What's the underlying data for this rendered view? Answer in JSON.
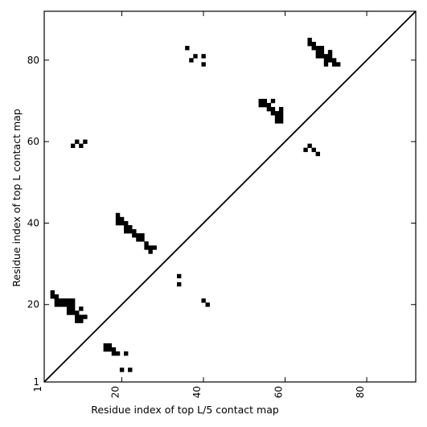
{
  "chart_data": {
    "type": "scatter",
    "title": "",
    "xlabel": "Residue index of top L/5 contact map",
    "ylabel": "Residue index of top L contact map",
    "xlim": [
      1,
      92
    ],
    "ylim": [
      1,
      92
    ],
    "x_ticks": [
      1,
      20,
      40,
      60,
      80
    ],
    "y_ticks": [
      1,
      20,
      40,
      60,
      80
    ],
    "x_tick_labels": [
      "1",
      "20",
      "40",
      "60",
      "80"
    ],
    "y_tick_labels": [
      "1",
      "20",
      "40",
      "60",
      "80"
    ],
    "x_tick_rotation": -90,
    "grid": false,
    "diagonal": true,
    "marker": "square",
    "color": "#000000",
    "points": [
      [
        3,
        22
      ],
      [
        3,
        23
      ],
      [
        4,
        20
      ],
      [
        4,
        21
      ],
      [
        4,
        22
      ],
      [
        5,
        20
      ],
      [
        5,
        21
      ],
      [
        6,
        20
      ],
      [
        6,
        21
      ],
      [
        7,
        18
      ],
      [
        7,
        19
      ],
      [
        7,
        20
      ],
      [
        7,
        21
      ],
      [
        8,
        18
      ],
      [
        8,
        19
      ],
      [
        8,
        20
      ],
      [
        8,
        21
      ],
      [
        9,
        16
      ],
      [
        9,
        17
      ],
      [
        9,
        18
      ],
      [
        10,
        16
      ],
      [
        10,
        17
      ],
      [
        10,
        19
      ],
      [
        11,
        17
      ],
      [
        16,
        9
      ],
      [
        16,
        10
      ],
      [
        17,
        9
      ],
      [
        17,
        10
      ],
      [
        18,
        8
      ],
      [
        18,
        9
      ],
      [
        19,
        8
      ],
      [
        20,
        4
      ],
      [
        21,
        8
      ],
      [
        22,
        4
      ],
      [
        19,
        40
      ],
      [
        19,
        41
      ],
      [
        19,
        42
      ],
      [
        20,
        40
      ],
      [
        20,
        41
      ],
      [
        21,
        38
      ],
      [
        21,
        39
      ],
      [
        21,
        40
      ],
      [
        22,
        38
      ],
      [
        22,
        39
      ],
      [
        23,
        37
      ],
      [
        23,
        38
      ],
      [
        24,
        36
      ],
      [
        24,
        37
      ],
      [
        25,
        36
      ],
      [
        25,
        37
      ],
      [
        26,
        34
      ],
      [
        26,
        35
      ],
      [
        27,
        33
      ],
      [
        27,
        34
      ],
      [
        28,
        34
      ],
      [
        34,
        25
      ],
      [
        34,
        27
      ],
      [
        40,
        21
      ],
      [
        41,
        20
      ],
      [
        8,
        59
      ],
      [
        9,
        60
      ],
      [
        10,
        59
      ],
      [
        11,
        60
      ],
      [
        36,
        83
      ],
      [
        37,
        80
      ],
      [
        38,
        81
      ],
      [
        40,
        79
      ],
      [
        40,
        81
      ],
      [
        54,
        69
      ],
      [
        54,
        70
      ],
      [
        55,
        69
      ],
      [
        55,
        70
      ],
      [
        56,
        69
      ],
      [
        56,
        68
      ],
      [
        57,
        67
      ],
      [
        57,
        68
      ],
      [
        57,
        70
      ],
      [
        58,
        65
      ],
      [
        58,
        66
      ],
      [
        58,
        67
      ],
      [
        59,
        65
      ],
      [
        59,
        66
      ],
      [
        59,
        67
      ],
      [
        59,
        68
      ],
      [
        65,
        58
      ],
      [
        66,
        59
      ],
      [
        67,
        58
      ],
      [
        68,
        57
      ],
      [
        66,
        84
      ],
      [
        66,
        85
      ],
      [
        67,
        83
      ],
      [
        67,
        84
      ],
      [
        68,
        81
      ],
      [
        68,
        82
      ],
      [
        68,
        83
      ],
      [
        69,
        81
      ],
      [
        69,
        82
      ],
      [
        69,
        83
      ],
      [
        70,
        79
      ],
      [
        70,
        80
      ],
      [
        70,
        81
      ],
      [
        71,
        80
      ],
      [
        71,
        81
      ],
      [
        71,
        82
      ],
      [
        72,
        79
      ],
      [
        72,
        80
      ],
      [
        73,
        79
      ]
    ]
  }
}
